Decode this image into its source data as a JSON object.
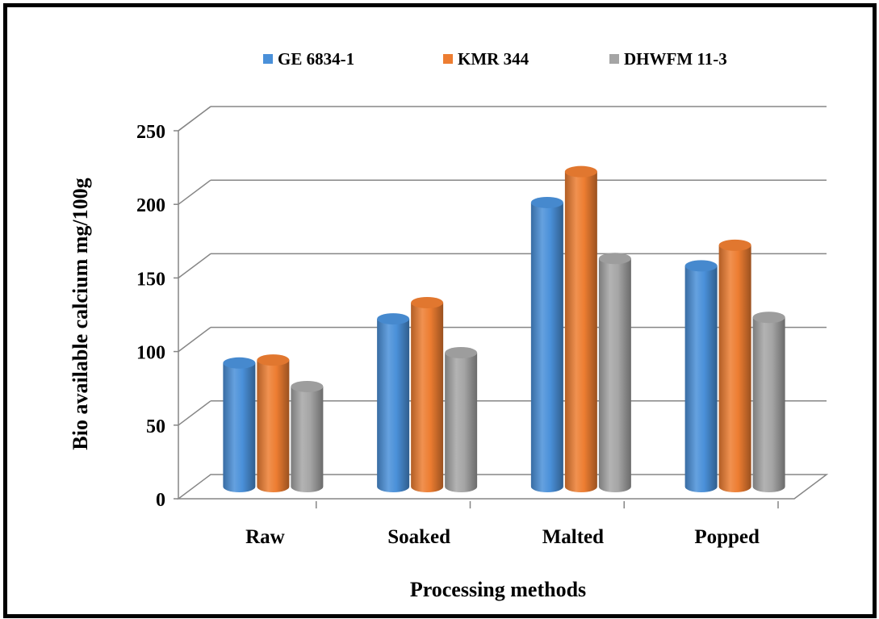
{
  "chart_data": {
    "type": "bar",
    "subtype": "3d-clustered-cylinder",
    "categories": [
      "Raw",
      "Soaked",
      "Malted",
      "Popped"
    ],
    "series": [
      {
        "name": "GE 6834-1",
        "values": [
          84,
          114,
          193,
          150
        ]
      },
      {
        "name": "KMR 344",
        "values": [
          86,
          125,
          214,
          164
        ]
      },
      {
        "name": "DHWFM 11-3",
        "values": [
          68,
          91,
          155,
          115
        ]
      }
    ],
    "xlabel": "Processing methods",
    "ylabel": "Bio available calcium mg/100g",
    "ylim": [
      0,
      250
    ],
    "yticks": [
      "0",
      "50",
      "100",
      "150",
      "200",
      "250"
    ],
    "grid": true,
    "legend_position": "top"
  },
  "colors": {
    "GE 6834-1": "#4a90d9",
    "KMR 344": "#ed7d31",
    "DHWFM 11-3": "#a5a5a5",
    "grid": "#868686"
  }
}
